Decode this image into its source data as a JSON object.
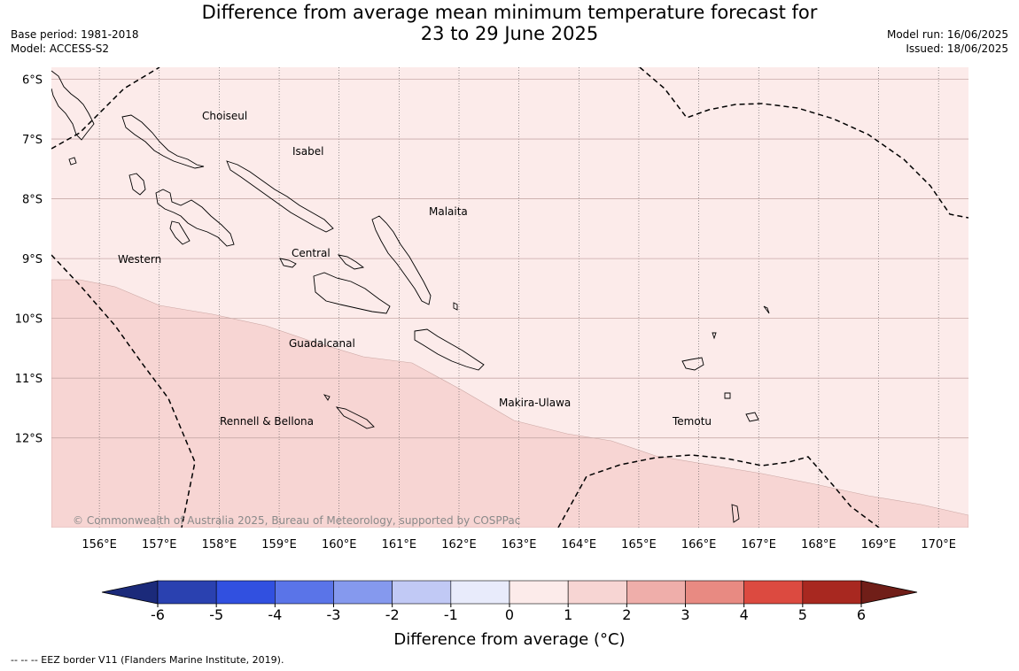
{
  "title_line1": "Difference from average mean minimum temperature forecast for",
  "title_line2": "23 to 29 June 2025",
  "base_period": "Base period: 1981-2018",
  "model": "Model: ACCESS-S2",
  "model_run": "Model run: 16/06/2025",
  "issued": "Issued: 18/06/2025",
  "copyright": "© Commonwealth of Australia 2025, Bureau of Meteorology, supported by COSPPac",
  "colorbar_label": "Difference from average (°C)",
  "footer_note": "--  --  -- EEZ border V11 (Flanders Marine Institute, 2019).",
  "lon_labels": [
    "156°E",
    "157°E",
    "158°E",
    "159°E",
    "160°E",
    "161°E",
    "162°E",
    "163°E",
    "164°E",
    "165°E",
    "166°E",
    "167°E",
    "168°E",
    "169°E",
    "170°E"
  ],
  "lat_labels": [
    "6°S",
    "7°S",
    "8°S",
    "9°S",
    "10°S",
    "11°S",
    "12°S"
  ],
  "regions": [
    "Choiseul",
    "Isabel",
    "Malaita",
    "Western",
    "Central",
    "Guadalcanal",
    "Makira-Ulawa",
    "Rennell & Bellona",
    "Temotu"
  ],
  "legend": {
    "ticks": [
      "-6",
      "-5",
      "-4",
      "-3",
      "-2",
      "-1",
      "0",
      "1",
      "2",
      "3",
      "4",
      "5",
      "6"
    ],
    "colors": [
      "#1b2a7a",
      "#2a41b0",
      "#3150e0",
      "#5a74e8",
      "#8599ee",
      "#c1c9f5",
      "#e8ebfb",
      "#fcebea",
      "#f7d5d3",
      "#efaeaa",
      "#e88a82",
      "#dc4a40",
      "#a82820",
      "#701e18"
    ]
  },
  "categories": {
    "0_to_1_color": "#fcebea",
    "1_to_2_color": "#f7d5d3"
  }
}
